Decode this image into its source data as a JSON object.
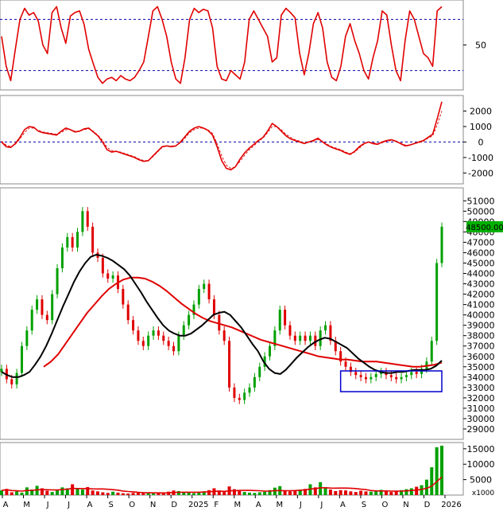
{
  "colors": {
    "price_up": "#00a000",
    "price_down": "#e00000",
    "ma_short": "#000000",
    "ma_long": "#e00000",
    "reference": "#0000aa",
    "consolidation_box": "#0000cc",
    "last_price_tag": "#00b000"
  },
  "chart_data": [
    {
      "panel": "stochastic",
      "type": "line",
      "yticks": [
        50
      ],
      "ylim": [
        0,
        100
      ],
      "reference_lines": [
        80,
        20
      ],
      "series": [
        {
          "values": [
            60,
            25,
            8,
            45,
            80,
            93,
            85,
            88,
            78,
            50,
            40,
            88,
            95,
            70,
            52,
            84,
            88,
            90,
            74,
            45,
            28,
            12,
            5,
            10,
            12,
            8,
            14,
            10,
            8,
            12,
            20,
            30,
            60,
            90,
            95,
            80,
            60,
            30,
            10,
            5,
            35,
            80,
            93,
            88,
            92,
            90,
            70,
            25,
            10,
            8,
            20,
            15,
            10,
            30,
            80,
            90,
            80,
            70,
            60,
            30,
            35,
            85,
            93,
            88,
            82,
            40,
            15,
            40,
            75,
            88,
            70,
            30,
            12,
            8,
            25,
            60,
            75,
            55,
            40,
            20,
            10,
            35,
            55,
            90,
            85,
            50,
            20,
            8,
            55,
            90,
            80,
            60,
            40,
            35,
            25,
            90,
            95
          ]
        }
      ]
    },
    {
      "panel": "macd",
      "type": "line",
      "yticks": [
        2000,
        1000,
        0,
        -1000,
        -2000
      ],
      "ylim": [
        -2600,
        2900
      ],
      "reference_lines": [
        0
      ],
      "series": [
        {
          "values": [
            0,
            -300,
            -350,
            -100,
            300,
            800,
            1000,
            950,
            700,
            600,
            550,
            500,
            450,
            700,
            900,
            800,
            650,
            700,
            850,
            900,
            650,
            400,
            0,
            -500,
            -650,
            -600,
            -700,
            -800,
            -900,
            -1000,
            -1150,
            -1250,
            -1200,
            -900,
            -600,
            -300,
            -250,
            -300,
            -250,
            0,
            350,
            700,
            900,
            1000,
            900,
            750,
            450,
            -300,
            -1200,
            -1700,
            -1800,
            -1600,
            -1100,
            -700,
            -400,
            -150,
            100,
            300,
            700,
            1200,
            1000,
            700,
            400,
            200,
            100,
            0,
            -100,
            0,
            100,
            250,
            0,
            -200,
            -350,
            -450,
            -550,
            -700,
            -800,
            -600,
            -300,
            -100,
            0,
            -100,
            -150,
            0,
            100,
            150,
            50,
            -100,
            -250,
            -200,
            -100,
            0,
            100,
            300,
            500,
            1500,
            2600
          ]
        },
        {
          "values": [
            50,
            -200,
            -300,
            -150,
            200,
            600,
            900,
            900,
            750,
            650,
            600,
            550,
            500,
            600,
            800,
            800,
            700,
            700,
            800,
            850,
            700,
            450,
            100,
            -350,
            -550,
            -600,
            -650,
            -750,
            -850,
            -950,
            -1100,
            -1200,
            -1200,
            -950,
            -650,
            -350,
            -250,
            -250,
            -250,
            -50,
            250,
            600,
            800,
            900,
            900,
            800,
            550,
            -100,
            -900,
            -1500,
            -1700,
            -1600,
            -1250,
            -850,
            -500,
            -250,
            50,
            250,
            600,
            1000,
            1000,
            800,
            500,
            300,
            150,
            50,
            -50,
            0,
            50,
            150,
            50,
            -150,
            -300,
            -400,
            -500,
            -650,
            -750,
            -650,
            -400,
            -150,
            0,
            -50,
            -100,
            -50,
            50,
            100,
            50,
            -50,
            -200,
            -200,
            -100,
            -50,
            50,
            250,
            400,
            1100,
            2000
          ]
        }
      ]
    },
    {
      "panel": "price",
      "type": "candlestick",
      "unit_note": "x1000",
      "yticks": [
        29000,
        30000,
        31000,
        32000,
        33000,
        34000,
        35000,
        36000,
        37000,
        38000,
        39000,
        40000,
        41000,
        42000,
        43000,
        44000,
        45000,
        46000,
        47000,
        48000,
        49000,
        50000,
        51000
      ],
      "ylim": [
        28000,
        52250
      ],
      "last_price_label": "48500.00",
      "x_labels": [
        "A",
        "M",
        "J",
        "J",
        "A",
        "S",
        "O",
        "N",
        "D",
        "2025",
        "F",
        "M",
        "A",
        "M",
        "J",
        "J",
        "A",
        "S",
        "O",
        "N",
        "D",
        "2026"
      ],
      "close": [
        34800,
        33800,
        33300,
        34400,
        37000,
        38500,
        40500,
        41500,
        40000,
        39500,
        42000,
        44500,
        46500,
        47500,
        46500,
        48000,
        50000,
        48500,
        46000,
        45500,
        44000,
        43500,
        43800,
        42500,
        41000,
        39500,
        38500,
        37500,
        37000,
        38000,
        38500,
        38000,
        37500,
        37000,
        36500,
        38000,
        39000,
        40000,
        41000,
        42500,
        43000,
        41500,
        40000,
        38500,
        37500,
        33000,
        32000,
        31800,
        32500,
        33000,
        34000,
        35000,
        36000,
        37000,
        38500,
        40500,
        39000,
        38000,
        37500,
        38000,
        37500,
        38000,
        37000,
        38500,
        39000,
        37500,
        36500,
        35500,
        35000,
        34500,
        34200,
        34000,
        33800,
        34000,
        34300,
        34500,
        34200,
        34000,
        33800,
        34000,
        34200,
        34500,
        34300,
        34800,
        35500,
        37500,
        45000,
        48500
      ],
      "ma_short": [
        34500,
        34200,
        34000,
        34000,
        34200,
        34500,
        35200,
        36000,
        37000,
        38200,
        39500,
        40800,
        42000,
        43200,
        44200,
        45000,
        45600,
        45800,
        45700,
        45500,
        45200,
        44800,
        44400,
        43800,
        43000,
        42200,
        41300,
        40500,
        39700,
        39000,
        38500,
        38200,
        38000,
        38000,
        38200,
        38600,
        39000,
        39500,
        40000,
        40200,
        40300,
        40000,
        39400,
        38800,
        38000,
        37200,
        36500,
        35500,
        34800,
        34400,
        34300,
        34700,
        35300,
        35900,
        36400,
        36900,
        37300,
        37600,
        37800,
        37700,
        37400,
        37100,
        36800,
        36300,
        35800,
        35400,
        35000,
        34700,
        34500,
        34400,
        34400,
        34500,
        34500,
        34600,
        34700,
        34700,
        34700,
        34800,
        35100,
        35600
      ],
      "ma_long": [
        35000,
        35500,
        36200,
        37200,
        38200,
        39200,
        40200,
        41000,
        41800,
        42500,
        43000,
        43400,
        43600,
        43600,
        43500,
        43200,
        42800,
        42300,
        41700,
        41100,
        40600,
        40100,
        39700,
        39400,
        39200,
        39000,
        38800,
        38500,
        38200,
        37900,
        37600,
        37400,
        37200,
        37000,
        36800,
        36600,
        36400,
        36200,
        36000,
        35900,
        35800,
        35700,
        35700,
        35600,
        35500,
        35500,
        35500,
        35400,
        35300,
        35200,
        35100,
        35000,
        35000,
        35100,
        35200,
        35400
      ]
    },
    {
      "panel": "volume",
      "type": "bar",
      "yticks": [
        15000,
        10000,
        5000
      ],
      "ylim": [
        0,
        16500
      ],
      "unit_label": "x1000",
      "values": [
        1500,
        2000,
        900,
        1200,
        800,
        2500,
        1800,
        3000,
        2200,
        1400,
        1000,
        1600,
        2500,
        2200,
        3500,
        2000,
        1800,
        2600,
        1500,
        1200,
        900,
        700,
        1100,
        800,
        600,
        500,
        700,
        900,
        600,
        800,
        500,
        700,
        900,
        1100,
        1500,
        1300,
        1000,
        800,
        600,
        900,
        1200,
        1600,
        2200,
        1500,
        1000,
        2800,
        1900,
        1300,
        1000,
        800,
        700,
        900,
        1100,
        1600,
        2400,
        2900,
        1600,
        1200,
        1500,
        1800,
        2000,
        3500,
        2500,
        4200,
        2600,
        1800,
        1300,
        1600,
        1500,
        1200,
        1000,
        1400,
        1200,
        1100,
        1500,
        1700,
        1200,
        1000,
        1300,
        1600,
        1900,
        2200,
        2700,
        3200,
        5000,
        9000,
        15500,
        16000
      ]
    }
  ]
}
